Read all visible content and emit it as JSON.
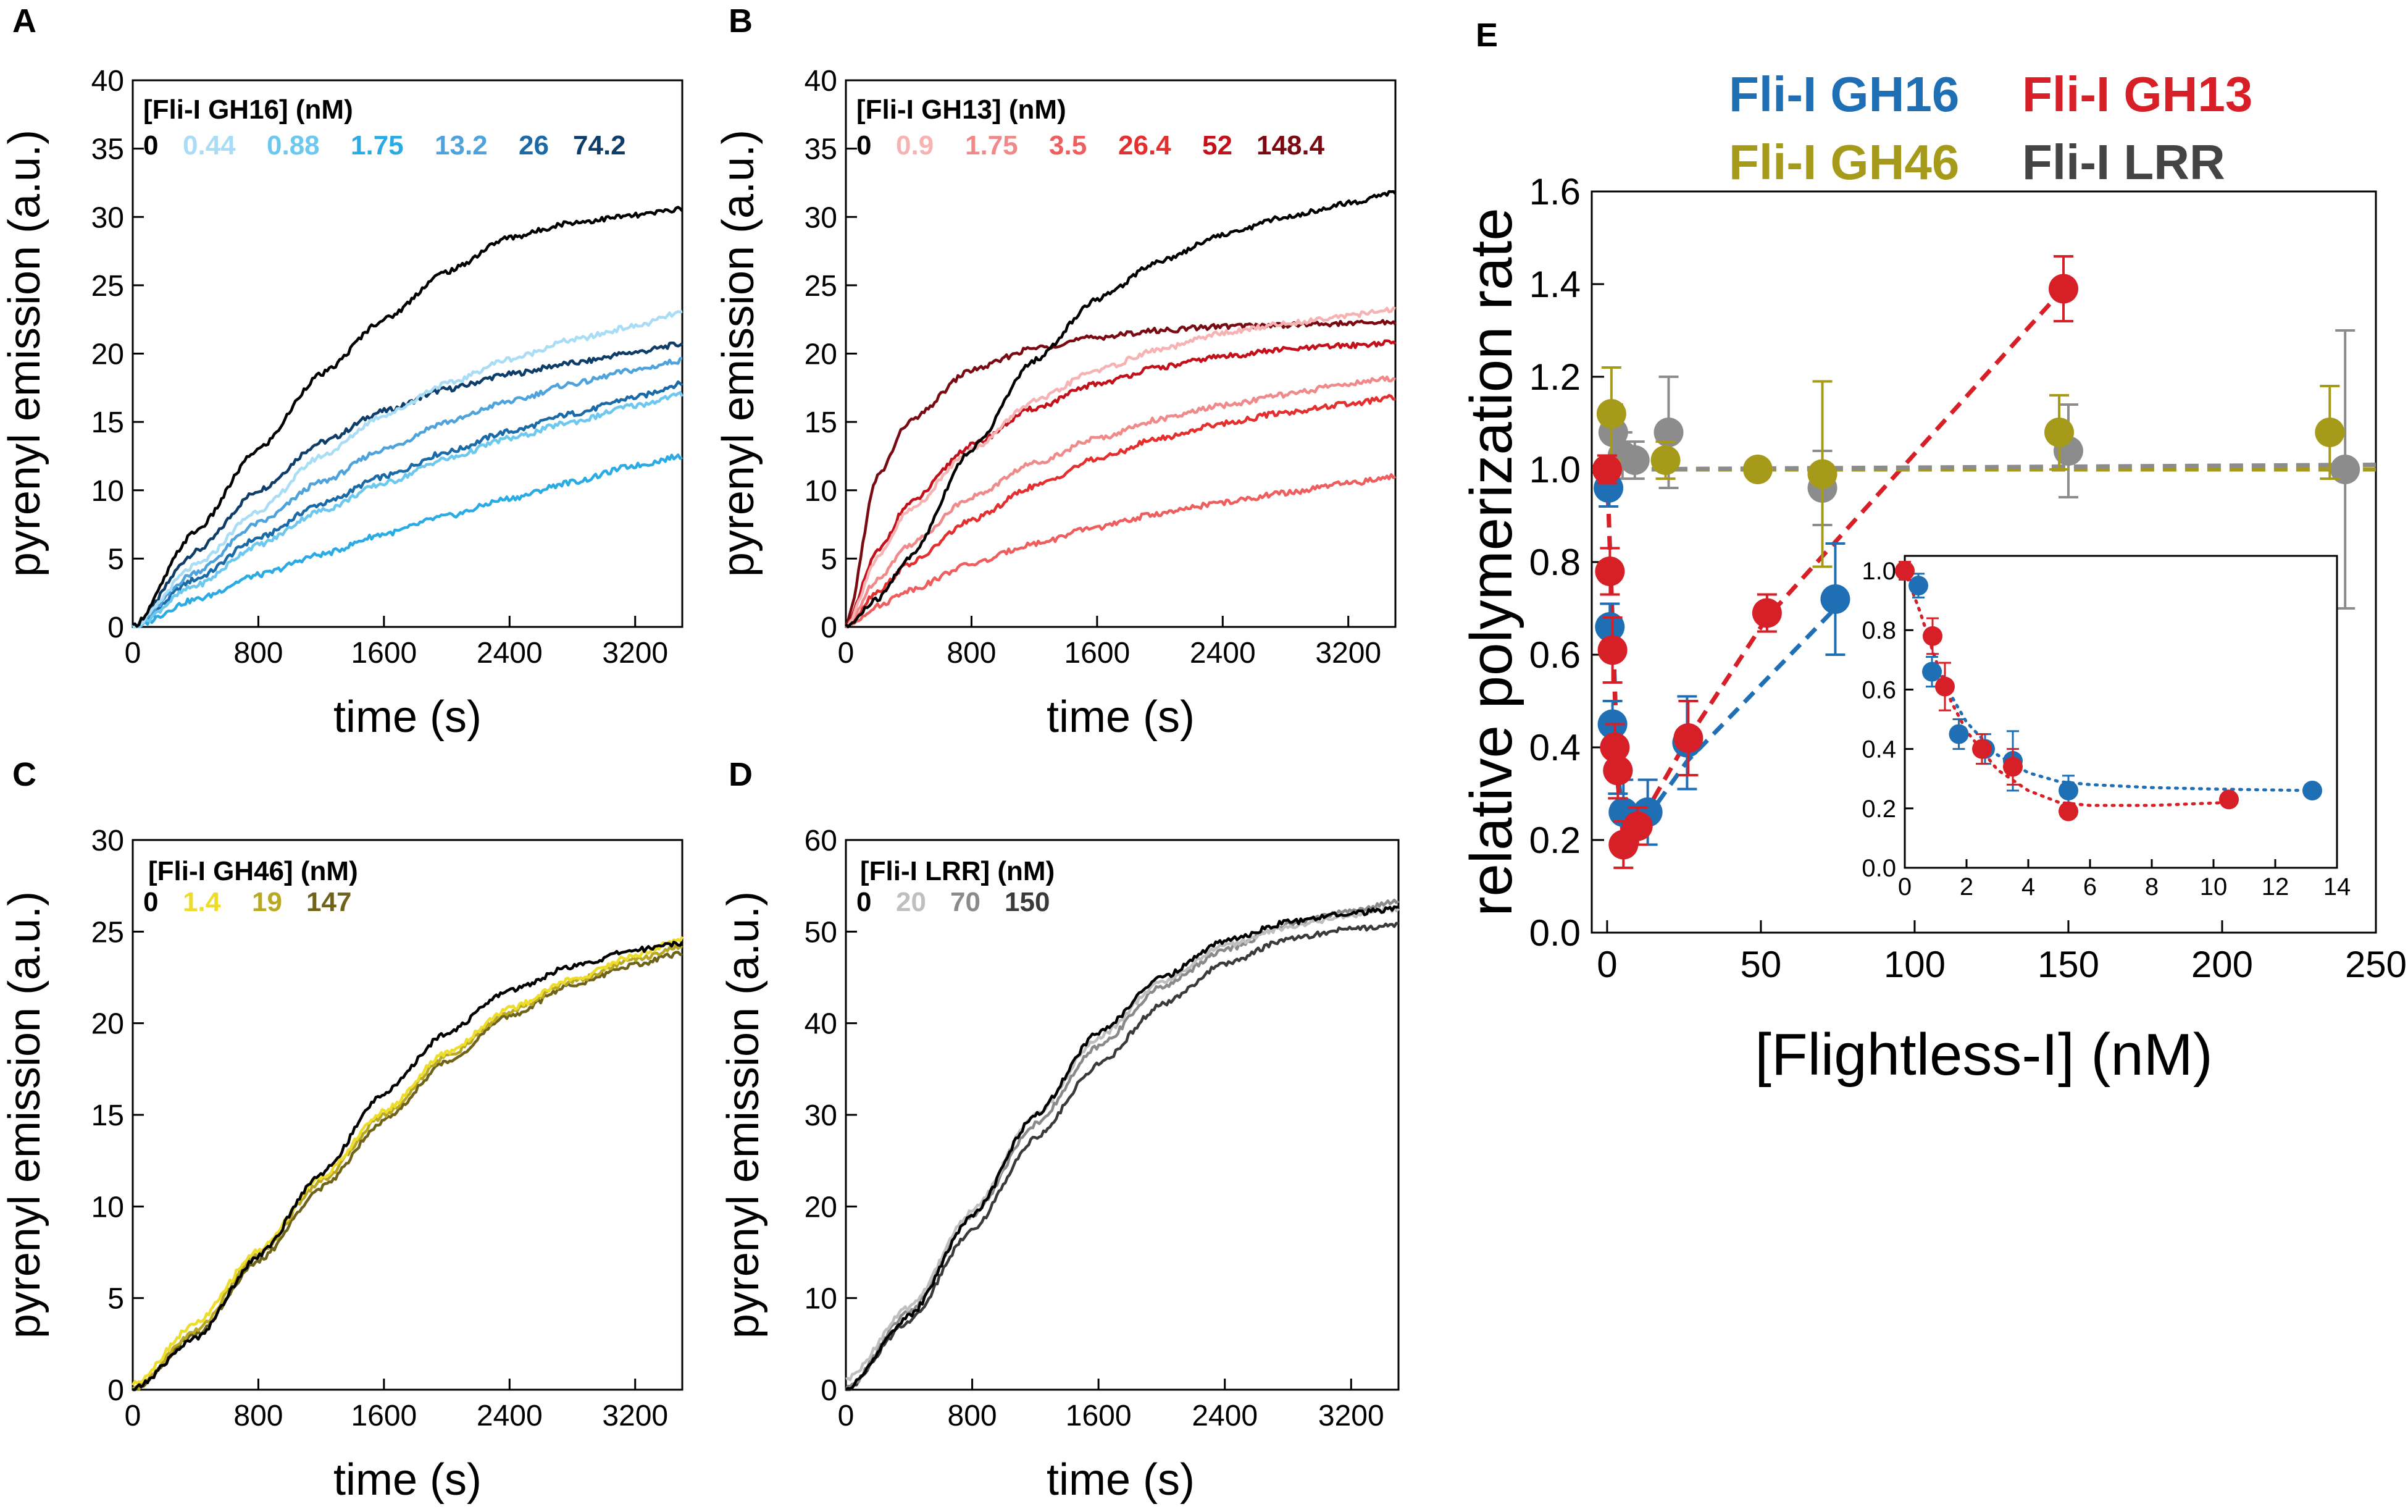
{
  "chart_data": [
    {
      "id": "A",
      "panel_label": "A",
      "type": "line",
      "xlabel": "time (s)",
      "ylabel": "pyrenyl emission (a.u.)",
      "xlim": [
        0,
        3500
      ],
      "ylim": [
        0,
        40
      ],
      "xticks": [
        0,
        800,
        1600,
        2400,
        3200
      ],
      "yticks": [
        0,
        5,
        10,
        15,
        20,
        25,
        30,
        35,
        40
      ],
      "legend_title": "[Fli-I GH16]  (nM)",
      "series": [
        {
          "name": "0",
          "color": "#000000",
          "x": [
            0,
            400,
            800,
            1200,
            1600,
            2000,
            2400,
            2800,
            3200,
            3500
          ],
          "y": [
            0,
            7,
            13,
            18.5,
            22.5,
            26,
            28.5,
            29.6,
            30.1,
            30.6
          ]
        },
        {
          "name": "0.44",
          "color": "#a8ddf5",
          "x": [
            0,
            400,
            800,
            1200,
            1600,
            2000,
            2400,
            2800,
            3200,
            3500
          ],
          "y": [
            0,
            4.5,
            8.5,
            12.5,
            15.5,
            17.8,
            19.6,
            21,
            22,
            23
          ]
        },
        {
          "name": "0.88",
          "color": "#6cc8ee",
          "x": [
            0,
            400,
            800,
            1200,
            1600,
            2000,
            2400,
            2800,
            3200,
            3500
          ],
          "y": [
            0,
            3,
            6,
            8.5,
            10.5,
            12.3,
            13.8,
            15,
            16.2,
            17
          ]
        },
        {
          "name": "1.75",
          "color": "#2aabe4",
          "x": [
            0,
            400,
            800,
            1200,
            1600,
            2000,
            2400,
            2800,
            3200,
            3500
          ],
          "y": [
            0,
            2,
            3.8,
            5.3,
            6.8,
            8.1,
            9.4,
            10.6,
            11.8,
            12.5
          ]
        },
        {
          "name": "13.2",
          "color": "#4fa3dc",
          "x": [
            0,
            400,
            800,
            1200,
            1600,
            2000,
            2400,
            2800,
            3200,
            3500
          ],
          "y": [
            0,
            4,
            7.6,
            10.6,
            13,
            15,
            16.5,
            17.8,
            18.8,
            19.5
          ]
        },
        {
          "name": "26",
          "color": "#1a6aa8",
          "x": [
            0,
            400,
            800,
            1200,
            1600,
            2000,
            2400,
            2800,
            3200,
            3500
          ],
          "y": [
            0,
            3.5,
            6.5,
            9,
            11,
            12.8,
            14.3,
            15.6,
            16.8,
            17.8
          ]
        },
        {
          "name": "74.2",
          "color": "#0d3d68",
          "x": [
            0,
            400,
            800,
            1200,
            1600,
            2000,
            2400,
            2800,
            3200,
            3500
          ],
          "y": [
            0,
            5.5,
            10,
            13.5,
            15.8,
            17.4,
            18.5,
            19.3,
            20.1,
            20.7
          ]
        }
      ]
    },
    {
      "id": "B",
      "panel_label": "B",
      "type": "line",
      "xlabel": "time (s)",
      "ylabel": "pyrenyl emission (a.u.)",
      "xlim": [
        0,
        3500
      ],
      "ylim": [
        0,
        40
      ],
      "xticks": [
        0,
        800,
        1600,
        2400,
        3200
      ],
      "yticks": [
        0,
        5,
        10,
        15,
        20,
        25,
        30,
        35,
        40
      ],
      "legend_title": "[Fli-I GH13]  (nM)",
      "series": [
        {
          "name": "0",
          "color": "#000000",
          "x": [
            0,
            200,
            400,
            800,
            1200,
            1600,
            2000,
            2400,
            2800,
            3200,
            3500
          ],
          "y": [
            0,
            2,
            5,
            13,
            19.5,
            24,
            26.8,
            28.7,
            30,
            31,
            31.8
          ]
        },
        {
          "name": "0.9",
          "color": "#f7b3b3",
          "x": [
            0,
            200,
            400,
            800,
            1200,
            1600,
            2000,
            2400,
            2800,
            3200,
            3500
          ],
          "y": [
            0,
            5,
            8.5,
            13,
            16.5,
            18.8,
            20.3,
            21.5,
            22.2,
            22.8,
            23.2
          ]
        },
        {
          "name": "1.75",
          "color": "#f08a8a",
          "x": [
            0,
            200,
            400,
            800,
            1200,
            1600,
            2000,
            2400,
            2800,
            3200,
            3500
          ],
          "y": [
            0,
            3.5,
            6,
            9.5,
            12,
            13.8,
            15.2,
            16.2,
            17,
            17.8,
            18.2
          ]
        },
        {
          "name": "3.5",
          "color": "#ee5e5e",
          "x": [
            0,
            200,
            400,
            800,
            1200,
            1600,
            2000,
            2400,
            2800,
            3200,
            3500
          ],
          "y": [
            0,
            1.5,
            2.7,
            4.6,
            6.1,
            7.3,
            8.3,
            9.1,
            9.8,
            10.5,
            11
          ]
        },
        {
          "name": "26.4",
          "color": "#e52e2e",
          "x": [
            0,
            200,
            400,
            800,
            1200,
            1600,
            2000,
            2400,
            2800,
            3200,
            3500
          ],
          "y": [
            0,
            2.6,
            4.6,
            7.8,
            10.3,
            12.3,
            13.8,
            14.9,
            15.7,
            16.3,
            16.8
          ]
        },
        {
          "name": "52",
          "color": "#c3101a",
          "x": [
            0,
            200,
            400,
            800,
            1200,
            1600,
            2000,
            2400,
            2800,
            3200,
            3500
          ],
          "y": [
            0,
            5.5,
            9,
            13.3,
            16,
            17.8,
            19,
            19.8,
            20.3,
            20.6,
            20.8
          ]
        },
        {
          "name": "148.4",
          "color": "#7a0a12",
          "x": [
            0,
            200,
            400,
            800,
            1200,
            1600,
            2000,
            2400,
            2800,
            3200,
            3500
          ],
          "y": [
            0,
            11,
            15,
            18.8,
            20.4,
            21.2,
            21.7,
            22,
            22.1,
            22.2,
            22.3
          ]
        }
      ]
    },
    {
      "id": "C",
      "panel_label": "C",
      "type": "line",
      "xlabel": "time (s)",
      "ylabel": "pyrenyl emission (a.u.)",
      "xlim": [
        0,
        3500
      ],
      "ylim": [
        0,
        30
      ],
      "xticks": [
        0,
        800,
        1600,
        2400,
        3200
      ],
      "yticks": [
        0,
        5,
        10,
        15,
        20,
        25,
        30
      ],
      "legend_title": "[Fli-I GH46]  (nM)",
      "series": [
        {
          "name": "0",
          "color": "#000000",
          "x": [
            0,
            400,
            800,
            1200,
            1600,
            2000,
            2400,
            2800,
            3200,
            3500
          ],
          "y": [
            0,
            2.8,
            7.3,
            11.8,
            16.2,
            19.5,
            21.8,
            23.1,
            24,
            24.4
          ]
        },
        {
          "name": "1.4",
          "color": "#eedc2a",
          "x": [
            0,
            400,
            800,
            1200,
            1600,
            2000,
            2400,
            2800,
            3200,
            3500
          ],
          "y": [
            0.3,
            3.6,
            7.6,
            11.6,
            15.2,
            18.4,
            20.8,
            22.4,
            23.7,
            24.6
          ]
        },
        {
          "name": "19",
          "color": "#b9a822",
          "x": [
            0,
            400,
            800,
            1200,
            1600,
            2000,
            2400,
            2800,
            3200,
            3500
          ],
          "y": [
            0,
            3.2,
            7.4,
            11.4,
            15,
            18.2,
            20.6,
            22.3,
            23.5,
            24.2
          ]
        },
        {
          "name": "147",
          "color": "#6f6219",
          "x": [
            0,
            400,
            800,
            1200,
            1600,
            2000,
            2400,
            2800,
            3200,
            3500
          ],
          "y": [
            0,
            3,
            7,
            11,
            14.7,
            17.9,
            20.4,
            22.1,
            23.2,
            23.8
          ]
        }
      ]
    },
    {
      "id": "D",
      "panel_label": "D",
      "type": "line",
      "xlabel": "time (s)",
      "ylabel": "pyrenyl emission (a.u.)",
      "xlim": [
        0,
        3500
      ],
      "ylim": [
        0,
        60
      ],
      "xticks": [
        0,
        800,
        1600,
        2400,
        3200
      ],
      "yticks": [
        0,
        10,
        20,
        30,
        40,
        50,
        60
      ],
      "legend_title": "[Fli-I LRR]  (nM)",
      "series": [
        {
          "name": "0",
          "color": "#000000",
          "x": [
            0,
            400,
            800,
            1200,
            1600,
            2000,
            2400,
            2800,
            3200,
            3500
          ],
          "y": [
            0,
            8,
            19,
            30,
            39,
            45,
            49,
            51,
            52,
            52.5
          ]
        },
        {
          "name": "20",
          "color": "#bfbfbf",
          "x": [
            0,
            400,
            800,
            1200,
            1600,
            2000,
            2400,
            2800,
            3200,
            3500
          ],
          "y": [
            1,
            9,
            19.5,
            30,
            38.5,
            44.5,
            48.5,
            50.5,
            51.8,
            52.5
          ]
        },
        {
          "name": "70",
          "color": "#8a8a8a",
          "x": [
            0,
            400,
            800,
            1200,
            1600,
            2000,
            2400,
            2800,
            3200,
            3500
          ],
          "y": [
            0,
            8.5,
            19,
            29,
            37.5,
            44,
            48,
            50.8,
            52.3,
            53.3
          ]
        },
        {
          "name": "150",
          "color": "#3a3a3a",
          "x": [
            0,
            400,
            800,
            1200,
            1600,
            2000,
            2400,
            2800,
            3200,
            3500
          ],
          "y": [
            0,
            7.5,
            17.5,
            27.5,
            35.5,
            42,
            46.5,
            49.2,
            50.3,
            50.8
          ]
        }
      ]
    },
    {
      "id": "E",
      "panel_label": "E",
      "type": "scatter",
      "xlabel": "[Flightless-I] (nM)",
      "ylabel": "relative polymerization rate",
      "xlim": [
        -5,
        250
      ],
      "ylim": [
        0,
        1.6
      ],
      "xticks": [
        0,
        50,
        100,
        150,
        200,
        250
      ],
      "yticks": [
        0.0,
        0.2,
        0.4,
        0.6,
        0.8,
        1.0,
        1.2,
        1.4,
        1.6
      ],
      "legend": [
        "Fli-I GH16",
        "Fli-I GH13",
        "Fli-I GH46",
        "Fli-I LRR"
      ],
      "series": [
        {
          "name": "Fli-I GH16",
          "color": "#1f6fb5",
          "x": [
            0.44,
            0.88,
            1.75,
            3.5,
            5.3,
            13.2,
            26,
            74.2
          ],
          "y": [
            0.96,
            0.66,
            0.45,
            0.35,
            0.26,
            0.26,
            0.41,
            0.72
          ],
          "err": [
            0.04,
            0.05,
            0.05,
            0.05,
            0.07,
            0.07,
            0.1,
            0.12
          ]
        },
        {
          "name": "Fli-I GH13",
          "color": "#d61f26",
          "x": [
            0.0,
            0.9,
            1.75,
            2.5,
            3.5,
            5.3,
            10,
            26.4,
            52,
            148.4
          ],
          "y": [
            1.0,
            0.78,
            0.61,
            0.4,
            0.35,
            0.19,
            0.23,
            0.42,
            0.69,
            1.39
          ],
          "err": [
            0.03,
            0.05,
            0.07,
            0.05,
            0.06,
            0.05,
            0.04,
            0.08,
            0.04,
            0.07
          ]
        },
        {
          "name": "Fli-I GH46",
          "color": "#a69a1a",
          "x": [
            0,
            1.4,
            19,
            49,
            70,
            147,
            235
          ],
          "y": [
            1.0,
            1.12,
            1.02,
            1.0,
            0.99,
            1.08,
            1.08
          ],
          "err": [
            0.03,
            0.1,
            0.04,
            0.02,
            0.2,
            0.08,
            0.1
          ]
        },
        {
          "name": "Fli-I LRR",
          "color": "#8c8c8c",
          "x": [
            0,
            2,
            5,
            9,
            20,
            70,
            150,
            240
          ],
          "y": [
            1.0,
            1.08,
            1.03,
            1.02,
            1.08,
            0.96,
            1.04,
            1.0
          ],
          "err": [
            0.03,
            0.06,
            0.05,
            0.04,
            0.12,
            0.08,
            0.1,
            0.3
          ]
        }
      ],
      "fits": [
        {
          "name": "GH16 fit",
          "color": "#1f6fb5",
          "x": [
            0,
            3.5,
            5.3,
            13.2,
            26,
            74.2
          ],
          "y": [
            1.0,
            0.35,
            0.23,
            0.25,
            0.37,
            0.7
          ]
        },
        {
          "name": "GH13 fit",
          "color": "#d61f26",
          "x": [
            0,
            3.5,
            5.3,
            10,
            26.4,
            52,
            148.4
          ],
          "y": [
            1.0,
            0.32,
            0.2,
            0.23,
            0.42,
            0.68,
            1.39
          ]
        },
        {
          "name": "GH46 fit",
          "color": "#a69a1a",
          "x": [
            0,
            250
          ],
          "y": [
            1.0,
            1.0
          ]
        },
        {
          "name": "LRR fit",
          "color": "#8c8c8c",
          "x": [
            0,
            250
          ],
          "y": [
            1.0,
            1.01
          ]
        }
      ],
      "inset": {
        "xlim": [
          0,
          14
        ],
        "ylim": [
          0.0,
          1.05
        ],
        "xticks": [
          0,
          2,
          4,
          6,
          8,
          10,
          12,
          14
        ],
        "yticks": [
          0.0,
          0.2,
          0.4,
          0.6,
          0.8,
          1.0
        ],
        "series": [
          {
            "name": "Fli-I GH16",
            "color": "#1f6fb5",
            "x": [
              0.44,
              0.88,
              1.75,
              2.6,
              3.5,
              5.3,
              13.2
            ],
            "y": [
              0.95,
              0.66,
              0.45,
              0.4,
              0.36,
              0.26,
              0.26
            ],
            "err": [
              0.04,
              0.05,
              0.05,
              0.05,
              0.1,
              0.05,
              0.0
            ]
          },
          {
            "name": "Fli-I GH13",
            "color": "#d61f26",
            "x": [
              0.0,
              0.9,
              1.3,
              2.5,
              3.5,
              5.3,
              10.5
            ],
            "y": [
              1.0,
              0.78,
              0.61,
              0.4,
              0.34,
              0.19,
              0.23
            ],
            "err": [
              0.03,
              0.06,
              0.08,
              0.05,
              0.06,
              0.0,
              0.0
            ]
          }
        ],
        "fits": [
          {
            "color": "#1f6fb5",
            "x": [
              0,
              0.5,
              1,
              1.5,
              2,
              3,
              4,
              5,
              6,
              8,
              10,
              13.2
            ],
            "y": [
              1.0,
              0.86,
              0.7,
              0.58,
              0.49,
              0.38,
              0.32,
              0.29,
              0.28,
              0.27,
              0.265,
              0.26
            ]
          },
          {
            "color": "#d61f26",
            "x": [
              0,
              0.5,
              1,
              1.5,
              2,
              3,
              4,
              5,
              6,
              8,
              10.5
            ],
            "y": [
              1.0,
              0.86,
              0.7,
              0.56,
              0.46,
              0.33,
              0.26,
              0.22,
              0.21,
              0.21,
              0.22
            ]
          }
        ]
      }
    }
  ]
}
